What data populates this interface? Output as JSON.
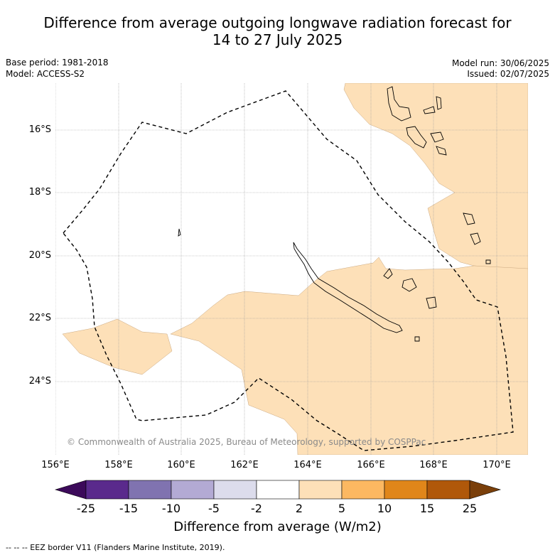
{
  "title": {
    "line1": "Difference from average outgoing longwave radiation forecast for",
    "line2": "14 to 27 July 2025"
  },
  "meta": {
    "base_period": "Base period: 1981-2018",
    "model": "Model: ACCESS-S2",
    "model_run": "Model run: 30/06/2025",
    "issued": "Issued: 02/07/2025"
  },
  "map": {
    "copyright": "© Commonwealth of Australia 2025, Bureau of Meteorology, supported by COSPPac",
    "x_ticks": [
      "156°E",
      "158°E",
      "160°E",
      "162°E",
      "164°E",
      "166°E",
      "168°E",
      "170°E"
    ],
    "y_ticks": [
      "16°S",
      "18°S",
      "20°S",
      "22°S",
      "24°S"
    ],
    "colors": {
      "anomaly_2_to_5": "#fde0b8",
      "land_outline": "#000000",
      "gridline": "#9a9a9a"
    }
  },
  "colorbar": {
    "title": "Difference from average (W/m2)",
    "labels": [
      "-25",
      "-15",
      "-10",
      "-5",
      "-2",
      "2",
      "5",
      "10",
      "15",
      "25"
    ],
    "colors": [
      "#3c0a5a",
      "#5a2a8c",
      "#8073b0",
      "#b3aad4",
      "#dcdcec",
      "#ffffff",
      "#fde0b8",
      "#fcb861",
      "#e0861a",
      "#b0580a",
      "#7a3f0a"
    ]
  },
  "footer": "--  --  -- EEZ border V11 (Flanders Marine Institute, 2019)."
}
